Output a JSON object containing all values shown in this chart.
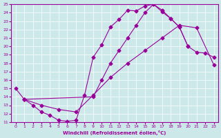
{
  "xlabel": "Windchill (Refroidissement éolien,°C)",
  "xlim_min": -0.5,
  "xlim_max": 23.5,
  "ylim_min": 11,
  "ylim_max": 25,
  "xticks": [
    0,
    1,
    2,
    3,
    4,
    5,
    6,
    7,
    8,
    9,
    10,
    11,
    12,
    13,
    14,
    15,
    16,
    17,
    18,
    19,
    20,
    21,
    22,
    23
  ],
  "yticks": [
    11,
    12,
    13,
    14,
    15,
    16,
    17,
    18,
    19,
    20,
    21,
    22,
    23,
    24,
    25
  ],
  "bg_color": "#cce8e8",
  "grid_color": "#ffffff",
  "line_color": "#990099",
  "curve1_x": [
    0,
    1,
    2,
    3,
    4,
    5,
    6,
    7,
    8,
    9,
    10,
    11,
    12,
    13,
    14,
    15,
    16,
    17,
    18,
    19,
    20
  ],
  "curve1_y": [
    15.0,
    13.7,
    13.0,
    12.2,
    11.8,
    11.2,
    11.1,
    11.2,
    14.2,
    18.7,
    20.2,
    22.3,
    23.2,
    24.3,
    24.2,
    24.8,
    25.0,
    24.1,
    23.3,
    22.3,
    20.0
  ],
  "curve2_x": [
    1,
    9,
    10,
    11,
    12,
    13,
    14,
    15,
    16,
    17,
    18,
    19,
    20,
    21,
    22,
    23
  ],
  "curve2_y": [
    13.7,
    14.0,
    16.0,
    18.0,
    19.5,
    21.0,
    22.5,
    24.0,
    25.0,
    24.3,
    23.3,
    22.3,
    20.0,
    19.3,
    19.2,
    18.7
  ],
  "curve3_x": [
    1,
    3,
    5,
    7,
    9,
    11,
    13,
    15,
    17,
    19,
    21,
    23
  ],
  "curve3_y": [
    13.7,
    13.0,
    12.5,
    12.2,
    14.2,
    16.3,
    18.0,
    19.5,
    21.0,
    22.5,
    22.2,
    17.8
  ]
}
